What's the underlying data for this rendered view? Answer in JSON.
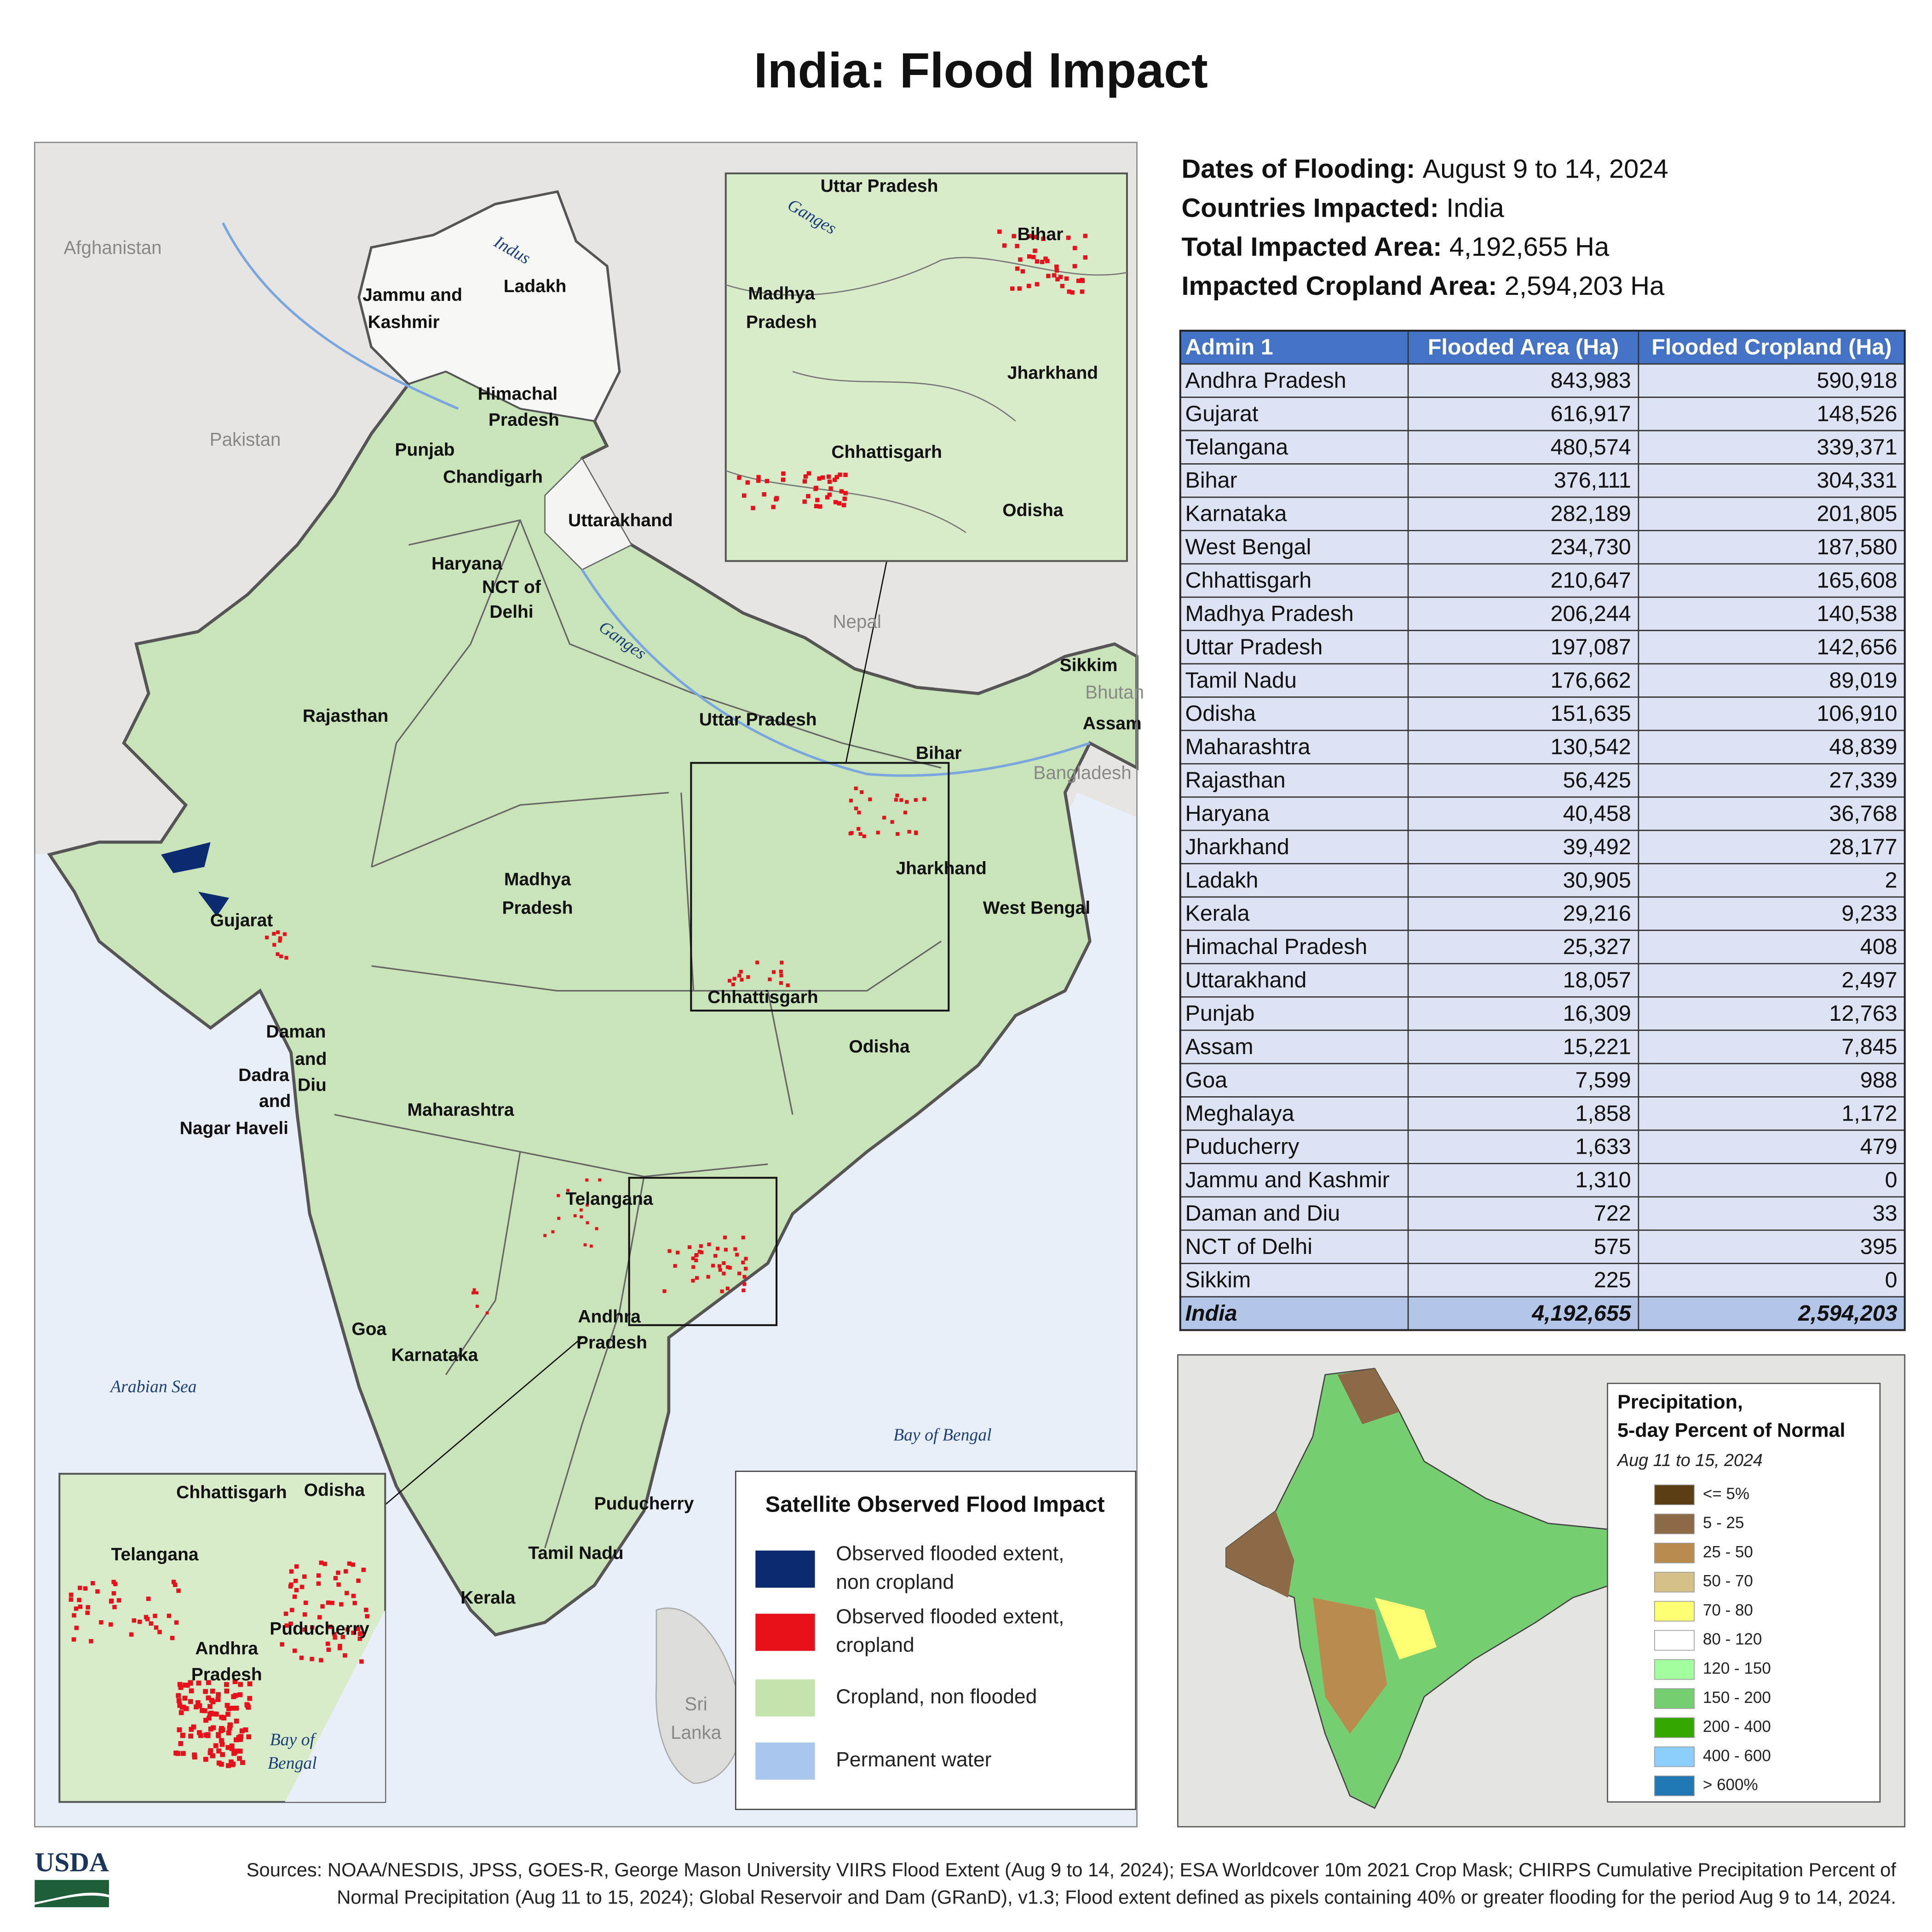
{
  "title": "India: Flood Impact",
  "summary": [
    {
      "label": "Dates of Flooding:",
      "value": "August 9 to 14, 2024"
    },
    {
      "label": "Countries Impacted:",
      "value": "India"
    },
    {
      "label": "Total Impacted Area:",
      "value": "4,192,655 Ha"
    },
    {
      "label": "Impacted Cropland Area:",
      "value": "2,594,203 Ha"
    }
  ],
  "table": {
    "columns": [
      "Admin 1",
      "Flooded Area (Ha)",
      "Flooded Cropland (Ha)"
    ],
    "rows": [
      [
        "Andhra Pradesh",
        "843,983",
        "590,918"
      ],
      [
        "Gujarat",
        "616,917",
        "148,526"
      ],
      [
        "Telangana",
        "480,574",
        "339,371"
      ],
      [
        "Bihar",
        "376,111",
        "304,331"
      ],
      [
        "Karnataka",
        "282,189",
        "201,805"
      ],
      [
        "West Bengal",
        "234,730",
        "187,580"
      ],
      [
        "Chhattisgarh",
        "210,647",
        "165,608"
      ],
      [
        "Madhya Pradesh",
        "206,244",
        "140,538"
      ],
      [
        "Uttar Pradesh",
        "197,087",
        "142,656"
      ],
      [
        "Tamil Nadu",
        "176,662",
        "89,019"
      ],
      [
        "Odisha",
        "151,635",
        "106,910"
      ],
      [
        "Maharashtra",
        "130,542",
        "48,839"
      ],
      [
        "Rajasthan",
        "56,425",
        "27,339"
      ],
      [
        "Haryana",
        "40,458",
        "36,768"
      ],
      [
        "Jharkhand",
        "39,492",
        "28,177"
      ],
      [
        "Ladakh",
        "30,905",
        "2"
      ],
      [
        "Kerala",
        "29,216",
        "9,233"
      ],
      [
        "Himachal Pradesh",
        "25,327",
        "408"
      ],
      [
        "Uttarakhand",
        "18,057",
        "2,497"
      ],
      [
        "Punjab",
        "16,309",
        "12,763"
      ],
      [
        "Assam",
        "15,221",
        "7,845"
      ],
      [
        "Goa",
        "7,599",
        "988"
      ],
      [
        "Meghalaya",
        "1,858",
        "1,172"
      ],
      [
        "Puducherry",
        "1,633",
        "479"
      ],
      [
        "Jammu and Kashmir",
        "1,310",
        "0"
      ],
      [
        "Daman and Diu",
        "722",
        "33"
      ],
      [
        "NCT of Delhi",
        "575",
        "395"
      ],
      [
        "Sikkim",
        "225",
        "0"
      ]
    ],
    "total": [
      "India",
      "4,192,655",
      "2,594,203"
    ]
  },
  "map": {
    "labels": [
      {
        "text": "Afghanistan",
        "kind": "country"
      },
      {
        "text": "Pakistan",
        "kind": "country"
      },
      {
        "text": "Nepal",
        "kind": "country"
      },
      {
        "text": "Bhutan",
        "kind": "country"
      },
      {
        "text": "Bangladesh",
        "kind": "country"
      },
      {
        "text": "Sri",
        "kind": "country"
      },
      {
        "text": "Lanka",
        "kind": "country"
      },
      {
        "text": "Arabian Sea",
        "kind": "water"
      },
      {
        "text": "Bay of Bengal",
        "kind": "water"
      },
      {
        "text": "Indus",
        "kind": "river"
      },
      {
        "text": "Ganges",
        "kind": "river"
      },
      {
        "text": "Jammu and",
        "kind": "state"
      },
      {
        "text": "Kashmir",
        "kind": "state"
      },
      {
        "text": "Ladakh",
        "kind": "state"
      },
      {
        "text": "Himachal",
        "kind": "state"
      },
      {
        "text": "Pradesh",
        "kind": "state"
      },
      {
        "text": "Punjab",
        "kind": "state"
      },
      {
        "text": "Chandigarh",
        "kind": "state"
      },
      {
        "text": "Uttarakhand",
        "kind": "state"
      },
      {
        "text": "Haryana",
        "kind": "state"
      },
      {
        "text": "NCT of",
        "kind": "state"
      },
      {
        "text": "Delhi",
        "kind": "state"
      },
      {
        "text": "Rajasthan",
        "kind": "state"
      },
      {
        "text": "Uttar Pradesh",
        "kind": "state"
      },
      {
        "text": "Bihar",
        "kind": "state"
      },
      {
        "text": "Sikkim",
        "kind": "state"
      },
      {
        "text": "Assam",
        "kind": "state"
      },
      {
        "text": "Madhya",
        "kind": "state"
      },
      {
        "text": "Pradesh",
        "kind": "state"
      },
      {
        "text": "Jharkhand",
        "kind": "state"
      },
      {
        "text": "West Bengal",
        "kind": "state"
      },
      {
        "text": "Gujarat",
        "kind": "state"
      },
      {
        "text": "Chhattisgarh",
        "kind": "state"
      },
      {
        "text": "Odisha",
        "kind": "state"
      },
      {
        "text": "Daman",
        "kind": "state"
      },
      {
        "text": "and",
        "kind": "state"
      },
      {
        "text": "Diu",
        "kind": "state"
      },
      {
        "text": "Dadra",
        "kind": "state"
      },
      {
        "text": "and",
        "kind": "state"
      },
      {
        "text": "Nagar Haveli",
        "kind": "state"
      },
      {
        "text": "Maharashtra",
        "kind": "state"
      },
      {
        "text": "Telangana",
        "kind": "state"
      },
      {
        "text": "Goa",
        "kind": "state"
      },
      {
        "text": "Andhra",
        "kind": "state"
      },
      {
        "text": "Pradesh",
        "kind": "state"
      },
      {
        "text": "Karnataka",
        "kind": "state"
      },
      {
        "text": "Puducherry",
        "kind": "state"
      },
      {
        "text": "Tamil Nadu",
        "kind": "state"
      },
      {
        "text": "Kerala",
        "kind": "state"
      }
    ]
  },
  "inset_north": {
    "labels": [
      {
        "text": "Uttar Pradesh",
        "kind": "state"
      },
      {
        "text": "Ganges",
        "kind": "river"
      },
      {
        "text": "Bihar",
        "kind": "state"
      },
      {
        "text": "Madhya",
        "kind": "state"
      },
      {
        "text": "Pradesh",
        "kind": "state"
      },
      {
        "text": "Jharkhand",
        "kind": "state"
      },
      {
        "text": "Chhattisgarh",
        "kind": "state"
      },
      {
        "text": "Odisha",
        "kind": "state"
      }
    ]
  },
  "inset_south": {
    "labels": [
      {
        "text": "Chhattisgarh",
        "kind": "state"
      },
      {
        "text": "Odisha",
        "kind": "state"
      },
      {
        "text": "Telangana",
        "kind": "state"
      },
      {
        "text": "Puducherry",
        "kind": "state"
      },
      {
        "text": "Andhra",
        "kind": "state"
      },
      {
        "text": "Pradesh",
        "kind": "state"
      },
      {
        "text": "Bay of",
        "kind": "water"
      },
      {
        "text": "Bengal",
        "kind": "water"
      }
    ]
  },
  "legend": {
    "title": "Satellite Observed Flood Impact",
    "items": [
      {
        "color": "#0b2a6f",
        "lines": [
          "Observed flooded extent,",
          "non cropland"
        ]
      },
      {
        "color": "#e8101a",
        "lines": [
          "Observed flooded extent,",
          "cropland"
        ]
      },
      {
        "color": "#c4e3ad",
        "lines": [
          "Cropland, non flooded"
        ]
      },
      {
        "color": "#a9c6ef",
        "lines": [
          "Permanent water"
        ]
      }
    ]
  },
  "precip_legend": {
    "title": [
      "Precipitation,",
      "5-day Percent of Normal"
    ],
    "subtitle": "Aug 11 to 15, 2024",
    "items": [
      {
        "color": "#5a3d12",
        "label": "<= 5%"
      },
      {
        "color": "#8b6a45",
        "label": "5 - 25"
      },
      {
        "color": "#b98c4e",
        "label": "25 - 50"
      },
      {
        "color": "#d6c08a",
        "label": "50 - 70"
      },
      {
        "color": "#ffff73",
        "label": "70 - 80"
      },
      {
        "color": "#ffffff",
        "label": "80 - 120"
      },
      {
        "color": "#a3ff9e",
        "label": "120 - 150"
      },
      {
        "color": "#75cf70",
        "label": "150 - 200"
      },
      {
        "color": "#35a800",
        "label": "200 - 400"
      },
      {
        "color": "#8ccfff",
        "label": "400 - 600"
      },
      {
        "color": "#1f78b4",
        "label": "> 600%"
      }
    ]
  },
  "footer": {
    "logo": "USDA",
    "sources": [
      "Sources: NOAA/NESDIS, JPSS, GOES-R, George Mason University VIIRS Flood Extent (Aug 9 to 14, 2024); ESA Worldcover 10m 2021 Crop Mask; CHIRPS Cumulative Precipitation Percent of",
      "Normal Precipitation (Aug 11 to 15, 2024); Global Reservoir and Dam (GRanD), v1.3; Flood extent defined as pixels containing 40% or greater flooding for the period Aug 9 to 14, 2024."
    ]
  }
}
